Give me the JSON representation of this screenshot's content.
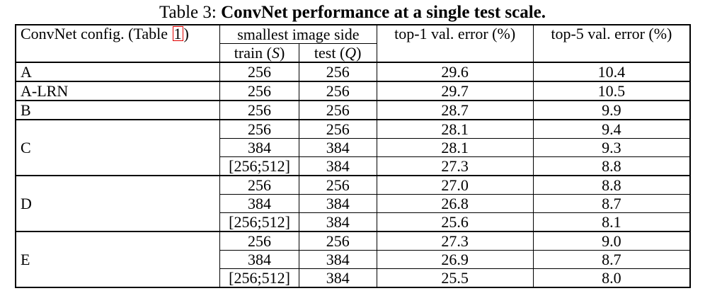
{
  "caption": {
    "prefix": "Table 3: ",
    "title": "ConvNet performance at a single test scale."
  },
  "header": {
    "config_label": "ConvNet config. (Table ",
    "config_ref": "1",
    "config_suffix": ")",
    "smallest_side": "smallest image side",
    "train_label": "train (",
    "train_var": "S",
    "test_label": "test (",
    "test_var": "Q",
    "close_paren": ")",
    "top1": "top-1 val. error (%)",
    "top5": "top-5 val. error (%)"
  },
  "rows": [
    {
      "config": "A",
      "train": "256",
      "test": "256",
      "top1": "29.6",
      "top5": "10.4"
    },
    {
      "config": "A-LRN",
      "train": "256",
      "test": "256",
      "top1": "29.7",
      "top5": "10.5"
    },
    {
      "config": "B",
      "train": "256",
      "test": "256",
      "top1": "28.7",
      "top5": "9.9"
    },
    {
      "config": "C",
      "train": "256",
      "test": "256",
      "top1": "28.1",
      "top5": "9.4"
    },
    {
      "config": "",
      "train": "384",
      "test": "384",
      "top1": "28.1",
      "top5": "9.3"
    },
    {
      "config": "",
      "train": "[256;512]",
      "test": "384",
      "top1": "27.3",
      "top5": "8.8"
    },
    {
      "config": "D",
      "train": "256",
      "test": "256",
      "top1": "27.0",
      "top5": "8.8"
    },
    {
      "config": "",
      "train": "384",
      "test": "384",
      "top1": "26.8",
      "top5": "8.7"
    },
    {
      "config": "",
      "train": "[256;512]",
      "test": "384",
      "top1": "25.6",
      "top5": "8.1"
    },
    {
      "config": "E",
      "train": "256",
      "test": "256",
      "top1": "27.3",
      "top5": "9.0"
    },
    {
      "config": "",
      "train": "384",
      "test": "384",
      "top1": "26.9",
      "top5": "8.7"
    },
    {
      "config": "",
      "train": "[256;512]",
      "test": "384",
      "top1": "25.5",
      "top5": "8.0"
    }
  ]
}
